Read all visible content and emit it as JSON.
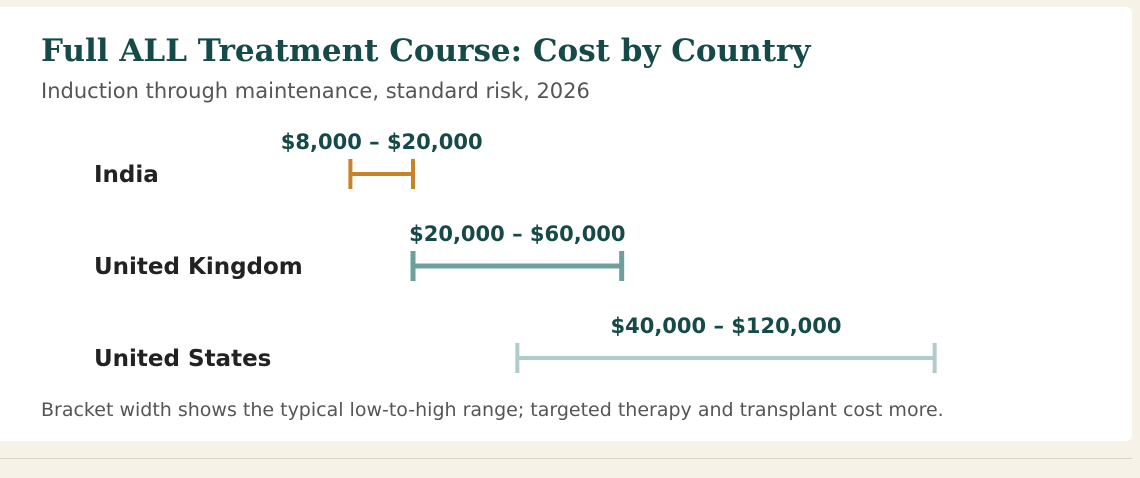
{
  "title": "Full ALL Treatment Course: Cost by Country",
  "subtitle": "Induction through maintenance, standard risk, 2026",
  "footnote": "Bracket width shows the typical low-to-high range; targeted therapy and transplant cost more.",
  "chart_data": {
    "type": "range-bracket",
    "title": "Full ALL Treatment Course: Cost by Country",
    "subtitle": "Induction through maintenance, standard risk, 2026",
    "unit": "USD",
    "categories": [
      "India",
      "United Kingdom",
      "United States"
    ],
    "series": [
      {
        "values": [
          {
            "category": "India",
            "low": 8000,
            "high": 20000,
            "label": "$8,000 – $20,000",
            "color": "#c8832a"
          },
          {
            "category": "United Kingdom",
            "low": 20000,
            "high": 60000,
            "label": "$20,000 – $60,000",
            "color": "#6d9f9b"
          },
          {
            "category": "United States",
            "low": 40000,
            "high": 120000,
            "label": "$40,000 – $120,000",
            "color": "#aecdca"
          }
        ]
      }
    ],
    "xlim": [
      -40000,
      140000
    ],
    "grid": false,
    "legend": "none"
  }
}
